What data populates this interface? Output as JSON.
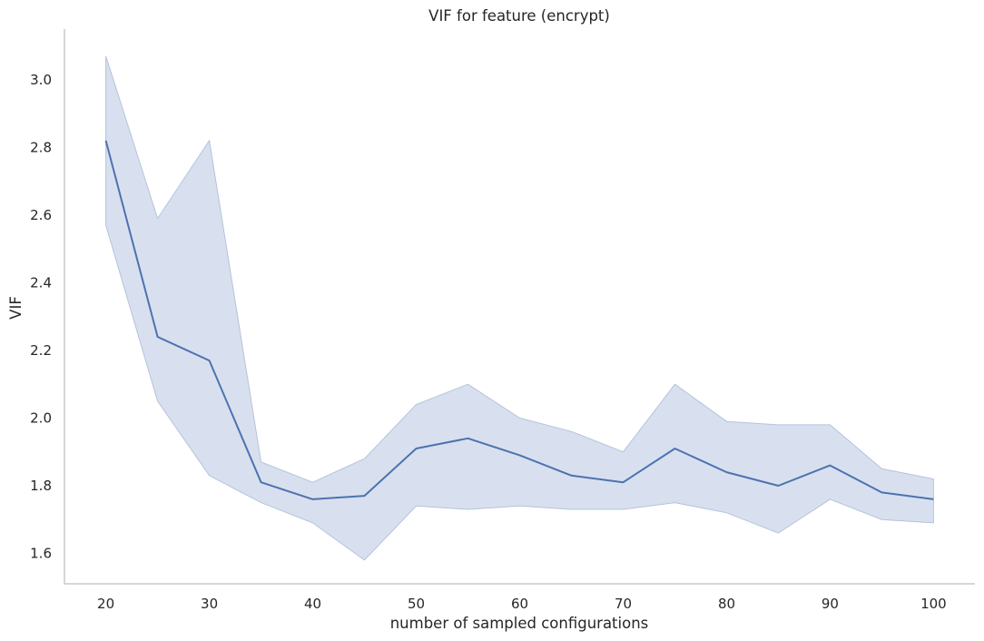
{
  "chart_data": {
    "type": "line",
    "title": "VIF for feature (encrypt)",
    "xlabel": "number of sampled configurations",
    "ylabel": "VIF",
    "xlim": [
      16,
      104
    ],
    "ylim": [
      1.51,
      3.15
    ],
    "xticks": [
      20,
      30,
      40,
      50,
      60,
      70,
      80,
      90,
      100
    ],
    "yticks": [
      1.6,
      1.8,
      2.0,
      2.2,
      2.4,
      2.6,
      2.8,
      3.0
    ],
    "grid": false,
    "colors": {
      "line": "#4c72b0",
      "band": "#c8d3e8",
      "band_edge": "#b5c3dc",
      "axis": "#c8c8c8"
    },
    "x": [
      20,
      25,
      30,
      35,
      40,
      45,
      50,
      55,
      60,
      65,
      70,
      75,
      80,
      85,
      90,
      95,
      100
    ],
    "series": [
      {
        "values": [
          2.82,
          2.24,
          2.17,
          1.81,
          1.76,
          1.77,
          1.91,
          1.94,
          1.89,
          1.83,
          1.81,
          1.91,
          1.84,
          1.8,
          1.86,
          1.78,
          1.76
        ],
        "lower": [
          2.57,
          2.05,
          1.83,
          1.75,
          1.69,
          1.58,
          1.74,
          1.73,
          1.74,
          1.73,
          1.73,
          1.75,
          1.72,
          1.66,
          1.76,
          1.7,
          1.69
        ],
        "upper": [
          3.07,
          2.59,
          2.82,
          1.87,
          1.81,
          1.88,
          2.04,
          2.1,
          2.0,
          1.96,
          1.9,
          2.1,
          1.99,
          1.98,
          1.98,
          1.85,
          1.82
        ]
      }
    ]
  }
}
